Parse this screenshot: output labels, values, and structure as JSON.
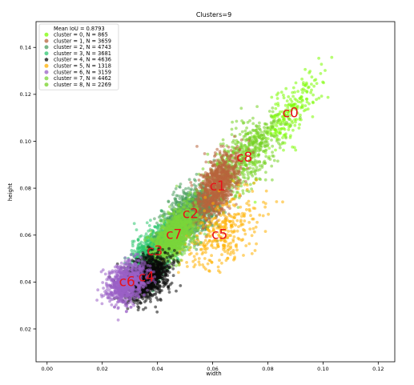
{
  "chart_data": {
    "type": "scatter",
    "title": "Clusters=9",
    "xlabel": "width",
    "ylabel": "height",
    "xlim": [
      -0.004,
      0.126
    ],
    "ylim": [
      0.006,
      0.151
    ],
    "xticks": [
      "0.00",
      "0.02",
      "0.04",
      "0.06",
      "0.08",
      "0.10",
      "0.12"
    ],
    "xtick_values": [
      0.0,
      0.02,
      0.04,
      0.06,
      0.08,
      0.1,
      0.12
    ],
    "yticks": [
      "0.02",
      "0.04",
      "0.06",
      "0.08",
      "0.10",
      "0.12",
      "0.14"
    ],
    "ytick_values": [
      0.02,
      0.04,
      0.06,
      0.08,
      0.1,
      0.12,
      0.14
    ],
    "grid": false,
    "legend_position": "top-left",
    "legend_header": "Mean IoU = 0.8793",
    "series": [
      {
        "name": "cluster = 0, N =    865",
        "label": "c0",
        "color": "#7cfc00",
        "centroid": [
          0.0882,
          0.112
        ],
        "count": 865
      },
      {
        "name": "cluster = 1, N =   3659",
        "label": "c1",
        "color": "#b8643c",
        "centroid": [
          0.0618,
          0.0808
        ],
        "count": 3659
      },
      {
        "name": "cluster = 2, N =   4743",
        "label": "c2",
        "color": "#4a9e5e",
        "centroid": [
          0.052,
          0.069
        ],
        "count": 4743
      },
      {
        "name": "cluster = 3, N =   3681",
        "label": "c3",
        "color": "#2dc670",
        "centroid": [
          0.039,
          0.053
        ],
        "count": 3681
      },
      {
        "name": "cluster = 4, N =   4636",
        "label": "c4",
        "color": "#0a0a0a",
        "centroid": [
          0.036,
          0.042
        ],
        "count": 4636
      },
      {
        "name": "cluster = 5, N =   1318",
        "label": "c5",
        "color": "#ffb000",
        "centroid": [
          0.0625,
          0.06
        ],
        "count": 1318
      },
      {
        "name": "cluster = 6, N =   3159",
        "label": "c6",
        "color": "#9a60c6",
        "centroid": [
          0.029,
          0.04
        ],
        "count": 3159
      },
      {
        "name": "cluster = 7, N =   4462",
        "label": "c7",
        "color": "#7ad63a",
        "centroid": [
          0.046,
          0.06
        ],
        "count": 4462
      },
      {
        "name": "cluster = 8, N =   2269",
        "label": "c8",
        "color": "#76d126",
        "centroid": [
          0.0715,
          0.093
        ],
        "count": 2269
      }
    ]
  }
}
